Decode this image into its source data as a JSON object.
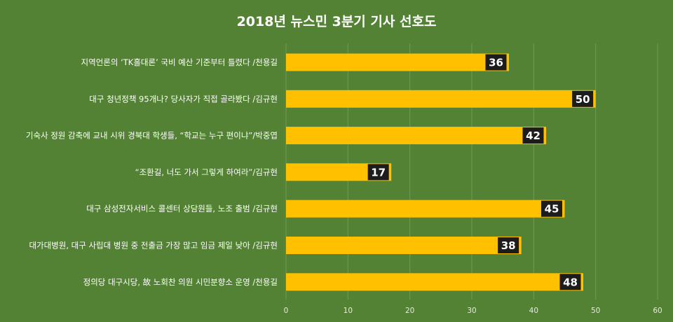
{
  "chart_data": {
    "type": "bar",
    "orientation": "horizontal",
    "title": "2018년 뉴스민 3분기 기사 선호도",
    "categories": [
      "지역언론의 ‘TK홀대론’ 국비 예산 기준부터 틀렸다 /천용길",
      "대구 청년정책 95개나? 당사자가 직접 골라봤다 /김규현",
      "기숙사 정원 감축에 교내 시위 경북대 학생들, “학교는 누구 편이냐”/박중엽",
      "“조환길, 너도 가서 그렇게 하여라”/김규현",
      "대구 삼성전자서비스 콜센터 상담원들, 노조 출범 /김규현",
      "대가대병원, 대구 사립대 병원 중 전출금 가장 많고 임금 제일 낮아 /김규현",
      "정의당 대구시당, 故 노회찬 의원 시민분향소 운영 /천용길"
    ],
    "values": [
      36,
      50,
      42,
      17,
      45,
      38,
      48
    ],
    "xlim": [
      0,
      60
    ],
    "xticks": [
      "0",
      "10",
      "20",
      "30",
      "40",
      "50",
      "60"
    ],
    "grid": true,
    "legend": "none",
    "colors": {
      "background": "#548235",
      "bar": "#FFC000",
      "label_box": "#1c1c1c",
      "grid": "#6f9a53",
      "text": "#ffffff"
    }
  }
}
